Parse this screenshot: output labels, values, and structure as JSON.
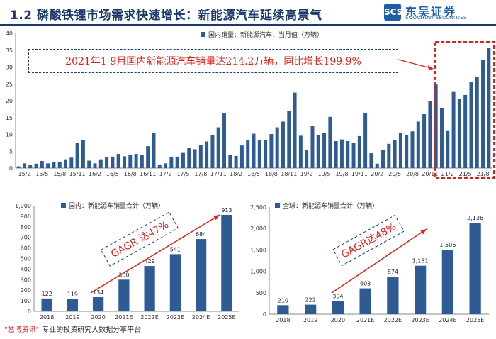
{
  "header": {
    "title": "1.2 磷酸铁锂市场需求快速增长：新能源汽车延续高景气",
    "logo_mark": "SCS",
    "logo_cn": "东吴证券",
    "logo_en": "SOOCHOW SECURITIES"
  },
  "annotation": "2021年1-9月国内新能源汽车销量达214.2万辆，同比增长199.9%",
  "footer": {
    "brand": "\"慧博资讯\"",
    "text": "专业的投资研究大数据分享平台"
  },
  "colors": {
    "bar": "#2e5b93",
    "accent": "#d9221c",
    "header": "#1b3a6b"
  },
  "chart_data": [
    {
      "type": "bar",
      "legend": "国内销量：新能源汽车：当月值（万辆）",
      "legend_position": "top-right",
      "ylim": [
        0,
        40
      ],
      "yticks": [
        0,
        5,
        10,
        15,
        20,
        25,
        30,
        35,
        40
      ],
      "x_tick_labels": [
        "15/2",
        "15/5",
        "15/8",
        "15/11",
        "16/2",
        "16/5",
        "16/8",
        "16/11",
        "17/2",
        "17/5",
        "17/8",
        "17/11",
        "18/2",
        "18/5",
        "18/8",
        "18/11",
        "19/2",
        "19/5",
        "19/8",
        "19/11",
        "20/2",
        "20/5",
        "20/8",
        "20/11",
        "21/2",
        "21/5",
        "21/8"
      ],
      "categories": [
        "15/1",
        "15/2",
        "15/3",
        "15/4",
        "15/5",
        "15/6",
        "15/7",
        "15/8",
        "15/9",
        "15/10",
        "15/11",
        "15/12",
        "16/1",
        "16/2",
        "16/3",
        "16/4",
        "16/5",
        "16/6",
        "16/7",
        "16/8",
        "16/9",
        "16/10",
        "16/11",
        "16/12",
        "17/1",
        "17/2",
        "17/3",
        "17/4",
        "17/5",
        "17/6",
        "17/7",
        "17/8",
        "17/9",
        "17/10",
        "17/11",
        "17/12",
        "18/1",
        "18/2",
        "18/3",
        "18/4",
        "18/5",
        "18/6",
        "18/7",
        "18/8",
        "18/9",
        "18/10",
        "18/11",
        "18/12",
        "19/1",
        "19/2",
        "19/3",
        "19/4",
        "19/5",
        "19/6",
        "19/7",
        "19/8",
        "19/9",
        "19/10",
        "19/11",
        "19/12",
        "20/1",
        "20/2",
        "20/3",
        "20/4",
        "20/5",
        "20/6",
        "20/7",
        "20/8",
        "20/9",
        "20/10",
        "20/11",
        "20/12",
        "21/1",
        "21/2",
        "21/3",
        "21/4",
        "21/5",
        "21/6",
        "21/7",
        "21/8",
        "21/9"
      ],
      "values": [
        0.5,
        1.4,
        0.9,
        1.3,
        2.1,
        1.4,
        1.9,
        1.8,
        2.6,
        3.1,
        7.5,
        8.4,
        2.2,
        1.4,
        2.6,
        3.2,
        3.4,
        4.2,
        3.5,
        3.8,
        4.2,
        4.0,
        6.5,
        10.5,
        0.9,
        1.4,
        3.2,
        3.4,
        4.5,
        6.0,
        5.6,
        6.9,
        7.9,
        9.8,
        12.1,
        16.2,
        3.9,
        3.6,
        6.7,
        8.2,
        10.2,
        8.4,
        8.4,
        10.1,
        12.1,
        13.8,
        16.9,
        22.4,
        9.6,
        5.3,
        12.6,
        9.7,
        10.4,
        15.2,
        8.0,
        8.5,
        8.0,
        7.5,
        9.5,
        16.3,
        4.4,
        1.3,
        5.3,
        7.2,
        8.2,
        10.4,
        9.8,
        10.9,
        13.8,
        16.0,
        20.0,
        24.8,
        17.9,
        11.0,
        22.6,
        20.6,
        21.7,
        25.6,
        27.1,
        32.1,
        35.7
      ]
    },
    {
      "type": "bar",
      "legend": "国内：新能源车销量合计（万辆）",
      "legend_position": "top-left",
      "ylim": [
        0,
        1000
      ],
      "yticks": [
        0,
        100,
        200,
        300,
        400,
        500,
        600,
        700,
        800,
        900,
        1000
      ],
      "categories": [
        "2018",
        "2019",
        "2020",
        "2021E",
        "2022E",
        "2023E",
        "2024E",
        "2025E"
      ],
      "values": [
        122,
        119,
        134,
        300,
        429,
        541,
        684,
        913
      ],
      "annotation": "GAGR 达47%"
    },
    {
      "type": "bar",
      "legend": "全球：新能源车销量合计（万辆）",
      "legend_position": "top-left",
      "ylim": [
        0,
        2500
      ],
      "yticks": [
        0,
        500,
        1000,
        1500,
        2000,
        2500
      ],
      "categories": [
        "2018",
        "2019",
        "2020",
        "2021E",
        "2022E",
        "2023E",
        "2024E",
        "2025E"
      ],
      "values": [
        210,
        222,
        304,
        603,
        874,
        1131,
        1506,
        2136
      ],
      "value_labels": [
        "210",
        "222",
        "304",
        "603",
        "874",
        "1,131",
        "1,506",
        "2,136"
      ],
      "annotation": "GAGR达48%"
    }
  ]
}
